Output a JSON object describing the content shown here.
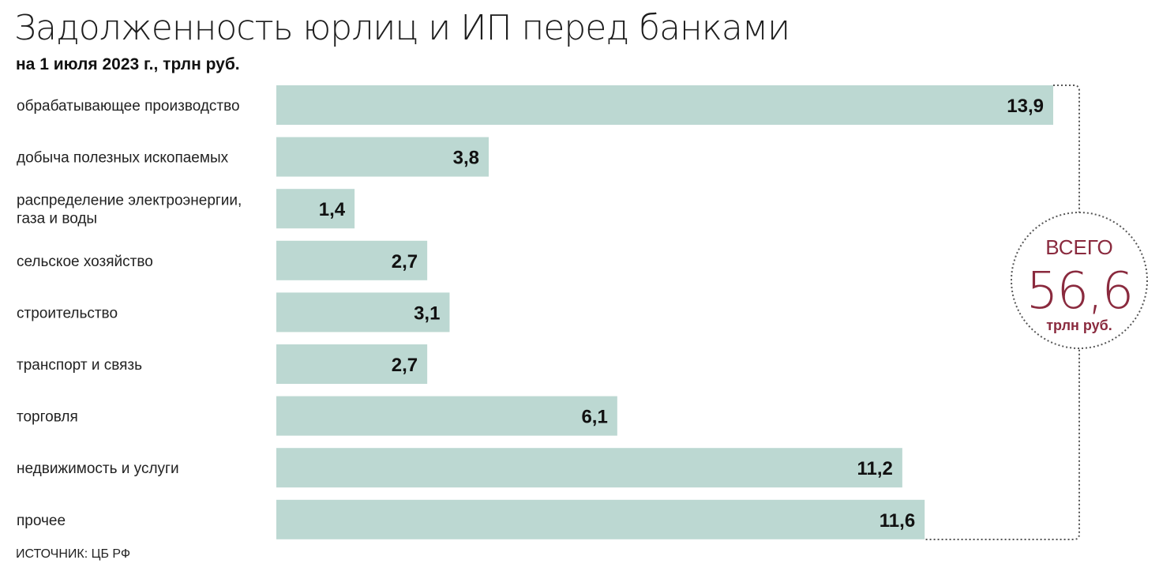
{
  "title": "Задолженность юрлиц и ИП перед банками",
  "subtitle": "на 1 июля 2023 г., трлн руб.",
  "source": "ИСТОЧНИК: ЦБ РФ",
  "total": {
    "caption": "ВСЕГО",
    "value": "56,6",
    "unit": "трлн руб."
  },
  "colors": {
    "bar": "#bcd8d2",
    "accent": "#8a2a3e",
    "dotted": "#555555"
  },
  "chart_data": {
    "type": "bar",
    "orientation": "horizontal",
    "categories": [
      [
        "обрабатывающее производство"
      ],
      [
        "добыча полезных ископаемых"
      ],
      [
        "распределение электроэнергии,",
        "газа и воды"
      ],
      [
        "сельское хозяйство"
      ],
      [
        "строительство"
      ],
      [
        "транспорт и связь"
      ],
      [
        "торговля"
      ],
      [
        "недвижимость и услуги"
      ],
      [
        "прочее"
      ]
    ],
    "values": [
      13.9,
      3.8,
      1.4,
      2.7,
      3.1,
      2.7,
      6.1,
      11.2,
      11.6
    ],
    "value_labels": [
      "13,9",
      "3,8",
      "1,4",
      "2,7",
      "3,1",
      "2,7",
      "6,1",
      "11,2",
      "11,6"
    ],
    "title": "Задолженность юрлиц и ИП перед банками",
    "subtitle": "на 1 июля 2023 г., трлн руб.",
    "xlabel": "",
    "ylabel": "",
    "xlim": [
      0,
      13.9
    ],
    "grid": false,
    "legend": "none"
  }
}
